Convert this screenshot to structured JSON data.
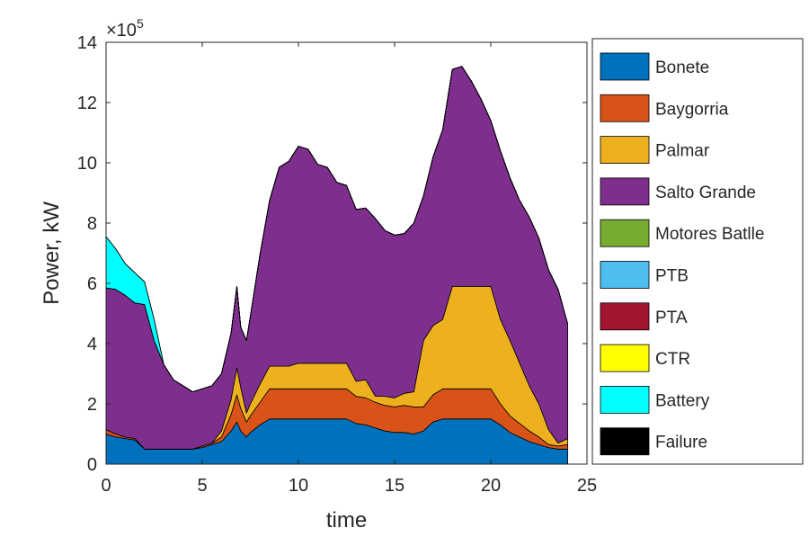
{
  "chart_data": {
    "type": "area",
    "stacked": true,
    "xlabel": "time",
    "ylabel": "Power, kW",
    "exponent_label": "×10",
    "exponent_power": "5",
    "xlim": [
      0,
      25
    ],
    "ylim": [
      0,
      14
    ],
    "xticks": [
      0,
      5,
      10,
      15,
      20,
      25
    ],
    "yticks": [
      0,
      2,
      4,
      6,
      8,
      10,
      12,
      14
    ],
    "grid": false,
    "legend_position": "outside-right",
    "y_unit_multiplier": 100000,
    "x": [
      0,
      0.5,
      1,
      1.5,
      2,
      2.5,
      3,
      3.5,
      4,
      4.5,
      5,
      5.5,
      6,
      6.5,
      6.8,
      7,
      7.3,
      7.5,
      8,
      8.5,
      9,
      9.5,
      10,
      10.5,
      11,
      11.5,
      12,
      12.5,
      13,
      13.5,
      14,
      14.5,
      15,
      15.5,
      16,
      16.5,
      17,
      17.5,
      18,
      18.5,
      19,
      19.5,
      20,
      20.5,
      21,
      21.5,
      22,
      22.5,
      23,
      23.5,
      24
    ],
    "series": [
      {
        "name": "Bonete",
        "color": "#0072BD",
        "values": [
          1.0,
          0.9,
          0.85,
          0.8,
          0.5,
          0.5,
          0.5,
          0.5,
          0.5,
          0.5,
          0.55,
          0.65,
          0.75,
          1.1,
          1.4,
          1.1,
          0.9,
          1.05,
          1.3,
          1.5,
          1.5,
          1.5,
          1.5,
          1.5,
          1.5,
          1.5,
          1.5,
          1.5,
          1.35,
          1.3,
          1.2,
          1.1,
          1.05,
          1.05,
          1.0,
          1.1,
          1.4,
          1.5,
          1.5,
          1.5,
          1.5,
          1.5,
          1.5,
          1.3,
          1.05,
          0.9,
          0.75,
          0.65,
          0.55,
          0.5,
          0.5
        ]
      },
      {
        "name": "Baygorria",
        "color": "#D95319",
        "values": [
          0.15,
          0.1,
          0.05,
          0.05,
          0,
          0,
          0,
          0,
          0,
          0,
          0.05,
          0.05,
          0.15,
          0.55,
          0.9,
          0.75,
          0.5,
          0.55,
          0.75,
          1.0,
          1.0,
          1.0,
          1.0,
          1.0,
          1.0,
          1.0,
          1.0,
          1.0,
          0.9,
          0.9,
          0.85,
          0.85,
          0.85,
          0.9,
          0.9,
          0.8,
          0.9,
          1.0,
          1.0,
          1.0,
          1.0,
          1.0,
          1.0,
          0.7,
          0.55,
          0.45,
          0.35,
          0.25,
          0.1,
          0.1,
          0.15
        ]
      },
      {
        "name": "Palmar",
        "color": "#EDB120",
        "values": [
          0,
          0,
          0,
          0,
          0,
          0,
          0,
          0,
          0,
          0,
          0,
          0,
          0.2,
          0.5,
          0.9,
          0.7,
          0.3,
          0.4,
          0.6,
          0.75,
          0.75,
          0.75,
          0.85,
          0.85,
          0.85,
          0.85,
          0.85,
          0.85,
          0.5,
          0.6,
          0.2,
          0.3,
          0.3,
          0.4,
          0.5,
          2.2,
          2.3,
          2.3,
          3.4,
          3.4,
          3.4,
          3.4,
          3.4,
          2.8,
          2.5,
          2.0,
          1.5,
          1.1,
          0.5,
          0.1,
          0.2
        ]
      },
      {
        "name": "Salto Grande",
        "color": "#7E2F8E",
        "values": [
          4.7,
          4.8,
          4.7,
          4.5,
          4.8,
          3.6,
          2.8,
          2.3,
          2.1,
          1.9,
          1.9,
          1.9,
          1.9,
          2.2,
          2.7,
          2.0,
          2.4,
          2.9,
          4.3,
          5.5,
          6.6,
          6.8,
          7.2,
          7.1,
          6.6,
          6.5,
          6.0,
          5.9,
          5.7,
          5.7,
          5.9,
          5.5,
          5.4,
          5.3,
          5.6,
          4.8,
          5.6,
          6.3,
          7.2,
          7.3,
          6.8,
          6.2,
          5.5,
          5.6,
          5.4,
          5.4,
          5.6,
          5.5,
          5.3,
          5.1,
          3.8
        ]
      },
      {
        "name": "Motores Batlle",
        "color": "#77AC30",
        "values": [
          0,
          0,
          0,
          0,
          0,
          0,
          0,
          0,
          0,
          0,
          0,
          0,
          0,
          0,
          0,
          0,
          0,
          0,
          0,
          0,
          0,
          0,
          0,
          0,
          0,
          0,
          0,
          0,
          0,
          0,
          0,
          0,
          0,
          0,
          0,
          0,
          0,
          0,
          0,
          0,
          0,
          0,
          0,
          0,
          0,
          0,
          0,
          0,
          0,
          0,
          0
        ]
      },
      {
        "name": "PTB",
        "color": "#4DBEEE",
        "values": [
          0,
          0,
          0,
          0,
          0,
          0,
          0,
          0,
          0,
          0,
          0,
          0,
          0,
          0,
          0,
          0,
          0,
          0,
          0,
          0,
          0,
          0,
          0,
          0,
          0,
          0,
          0,
          0,
          0,
          0,
          0,
          0,
          0,
          0,
          0,
          0,
          0,
          0,
          0,
          0,
          0,
          0,
          0,
          0,
          0,
          0,
          0,
          0,
          0,
          0,
          0
        ]
      },
      {
        "name": "PTA",
        "color": "#A2142F",
        "values": [
          0,
          0,
          0,
          0,
          0,
          0,
          0,
          0,
          0,
          0,
          0,
          0,
          0,
          0,
          0,
          0,
          0,
          0,
          0,
          0,
          0,
          0,
          0,
          0,
          0,
          0,
          0,
          0,
          0,
          0,
          0,
          0,
          0,
          0,
          0,
          0,
          0,
          0,
          0,
          0,
          0,
          0,
          0,
          0,
          0,
          0,
          0,
          0,
          0,
          0,
          0
        ]
      },
      {
        "name": "CTR",
        "color": "#FFFF00",
        "values": [
          0,
          0,
          0,
          0,
          0,
          0,
          0,
          0,
          0,
          0,
          0,
          0,
          0,
          0,
          0,
          0,
          0,
          0,
          0,
          0,
          0,
          0,
          0,
          0,
          0,
          0,
          0,
          0,
          0,
          0,
          0,
          0,
          0,
          0,
          0,
          0,
          0,
          0,
          0,
          0,
          0,
          0,
          0,
          0,
          0,
          0,
          0,
          0,
          0,
          0,
          0
        ]
      },
      {
        "name": "Battery",
        "color": "#00FFFF",
        "values": [
          1.7,
          1.35,
          1.05,
          1.0,
          0.75,
          0.7,
          0,
          0,
          0,
          0,
          0,
          0,
          0,
          0,
          0,
          0,
          0,
          0,
          0,
          0,
          0,
          0,
          0,
          0,
          0,
          0,
          0,
          0,
          0,
          0,
          0,
          0,
          0,
          0,
          0,
          0,
          0,
          0,
          0,
          0,
          0,
          0,
          0,
          0,
          0,
          0,
          0,
          0,
          0,
          0,
          0
        ]
      },
      {
        "name": "Failure",
        "color": "#000000",
        "values": [
          0,
          0,
          0,
          0,
          0,
          0,
          0,
          0,
          0,
          0,
          0,
          0,
          0,
          0,
          0,
          0,
          0,
          0,
          0,
          0,
          0,
          0,
          0,
          0,
          0,
          0,
          0,
          0,
          0,
          0,
          0,
          0,
          0,
          0,
          0,
          0,
          0,
          0,
          0,
          0,
          0,
          0,
          0,
          0,
          0,
          0,
          0,
          0,
          0,
          0,
          0
        ]
      }
    ]
  }
}
